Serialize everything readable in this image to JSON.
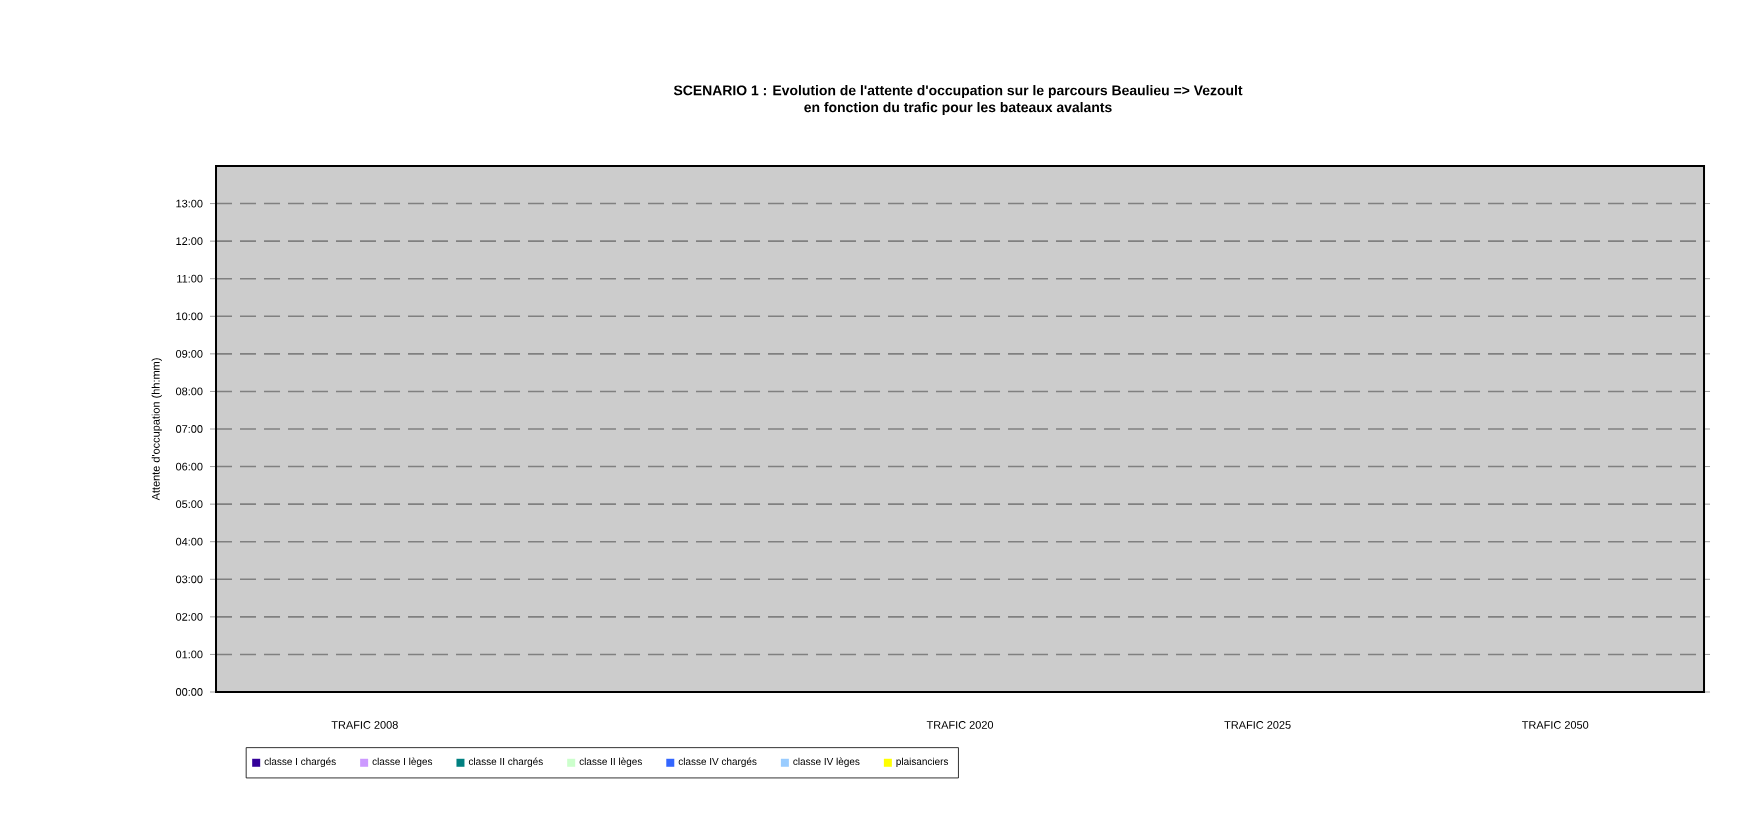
{
  "chart_data": {
    "type": "bar",
    "title": "SCENARIO 1 : Evolution de l'attente d'occupation sur le parcours Beaulieu => Vezoult",
    "subtitle": "en fonction du trafic pour les bateaux avalants",
    "ylabel": "Attente d'occupation (hh:mm)",
    "categories": [
      "TRAFIC 2008",
      null,
      "TRAFIC 2020",
      "TRAFIC 2025",
      "TRAFIC 2050"
    ],
    "series": [
      {
        "name": "classe I chargés",
        "color": "#330099",
        "values": [
          0,
          0,
          0,
          0,
          0
        ]
      },
      {
        "name": "classe I lèges",
        "color": "#cc99ff",
        "values": [
          0,
          0,
          0,
          0,
          0
        ]
      },
      {
        "name": "classe II chargés",
        "color": "#008080",
        "values": [
          0,
          0,
          0,
          0,
          0
        ]
      },
      {
        "name": "classe II lèges",
        "color": "#ccffcc",
        "values": [
          0,
          0,
          0,
          0,
          0
        ]
      },
      {
        "name": "classe IV chargés",
        "color": "#3366ff",
        "values": [
          0,
          0,
          0,
          0,
          0
        ]
      },
      {
        "name": "classe IV lèges",
        "color": "#99ccff",
        "values": [
          0,
          0,
          0,
          0,
          0
        ]
      },
      {
        "name": "plaisanciers",
        "color": "#ffff00",
        "values": [
          0,
          0,
          0,
          0,
          0
        ]
      }
    ],
    "ylim": [
      0,
      14
    ],
    "yticks": [
      {
        "value": 0,
        "label": "00:00"
      },
      {
        "value": 1,
        "label": "01:00"
      },
      {
        "value": 2,
        "label": "02:00"
      },
      {
        "value": 3,
        "label": "03:00"
      },
      {
        "value": 4,
        "label": "04:00"
      },
      {
        "value": 5,
        "label": "05:00"
      },
      {
        "value": 6,
        "label": "06:00"
      },
      {
        "value": 7,
        "label": "07:00"
      },
      {
        "value": 8,
        "label": "08:00"
      },
      {
        "value": 9,
        "label": "09:00"
      },
      {
        "value": 10,
        "label": "10:00"
      },
      {
        "value": 11,
        "label": "11:00"
      },
      {
        "value": 12,
        "label": "12:00"
      },
      {
        "value": 13,
        "label": "13:00"
      }
    ],
    "grid": "y",
    "legend": "bottom"
  }
}
